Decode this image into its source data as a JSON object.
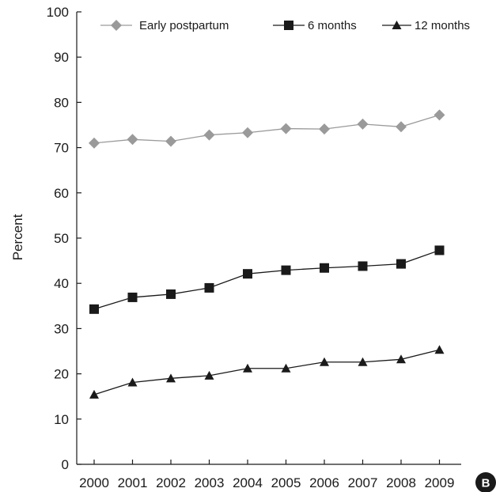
{
  "chart_data": {
    "type": "line",
    "title": "",
    "xlabel": "",
    "ylabel": "Percent",
    "x": [
      "2000",
      "2001",
      "2002",
      "2003",
      "2004",
      "2005",
      "2006",
      "2007",
      "2008",
      "2009"
    ],
    "ylim": [
      0,
      100
    ],
    "yticks": [
      "0",
      "10",
      "20",
      "30",
      "40",
      "50",
      "60",
      "70",
      "80",
      "90",
      "100"
    ],
    "grid": false,
    "legend_position": "top",
    "series": [
      {
        "name": "Early postpartum",
        "marker": "diamond",
        "color": "#9a9a9a",
        "values": [
          71.0,
          71.8,
          71.4,
          72.8,
          73.3,
          74.2,
          74.1,
          75.2,
          74.6,
          77.2
        ]
      },
      {
        "name": "6 months",
        "marker": "square",
        "color": "#1a1a1a",
        "values": [
          34.3,
          36.9,
          37.6,
          39.0,
          42.1,
          42.9,
          43.4,
          43.8,
          44.3,
          47.3
        ]
      },
      {
        "name": "12 months",
        "marker": "triangle",
        "color": "#1a1a1a",
        "values": [
          15.4,
          18.1,
          19.0,
          19.6,
          21.2,
          21.2,
          22.6,
          22.6,
          23.2,
          25.3
        ]
      }
    ],
    "panel_label": "B"
  }
}
